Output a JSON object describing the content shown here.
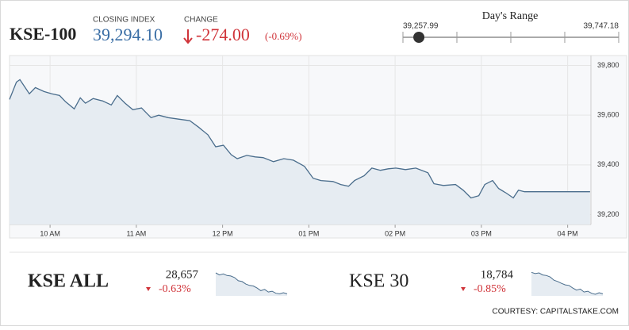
{
  "header": {
    "symbol": "KSE-100",
    "closing_label": "CLOSING INDEX",
    "closing_index": {
      "value": 39294.1,
      "label": "39,294.10"
    },
    "change_label": "CHANGE",
    "change": "-274.00",
    "change_percent": "(-0.69%)"
  },
  "days_range": {
    "title": "Day's Range",
    "low": {
      "value": 39257.99,
      "label": "39,257.99"
    },
    "high": {
      "value": 39747.18,
      "label": "39,747.18"
    }
  },
  "chart_data": [
    {
      "type": "line",
      "color": "#4a6d8c",
      "fill": "#e6ecf2",
      "grid": true,
      "x": [
        9.53,
        9.61,
        9.65,
        9.7,
        9.76,
        9.83,
        9.93,
        10.02,
        10.11,
        10.18,
        10.28,
        10.35,
        10.41,
        10.5,
        10.61,
        10.71,
        10.78,
        10.87,
        10.96,
        11.06,
        11.17,
        11.26,
        11.37,
        11.49,
        11.62,
        11.72,
        11.83,
        11.92,
        12.01,
        12.1,
        12.17,
        12.28,
        12.38,
        12.47,
        12.59,
        12.71,
        12.82,
        12.95,
        13.05,
        13.14,
        13.28,
        13.37,
        13.46,
        13.53,
        13.64,
        13.73,
        13.83,
        13.92,
        14.01,
        14.12,
        14.24,
        14.38,
        14.45,
        14.56,
        14.7,
        14.79,
        14.88,
        14.97,
        15.04,
        15.13,
        15.2,
        15.29,
        15.37,
        15.43,
        15.5,
        16.26
      ],
      "values": [
        39663,
        39733,
        39743,
        39717,
        39686,
        39711,
        39695,
        39686,
        39679,
        39654,
        39625,
        39670,
        39648,
        39667,
        39657,
        39641,
        39679,
        39648,
        39622,
        39629,
        39590,
        39600,
        39590,
        39584,
        39578,
        39552,
        39521,
        39473,
        39479,
        39441,
        39425,
        39438,
        39432,
        39429,
        39413,
        39425,
        39419,
        39394,
        39346,
        39337,
        39333,
        39321,
        39314,
        39337,
        39356,
        39387,
        39378,
        39384,
        39387,
        39381,
        39387,
        39368,
        39324,
        39317,
        39321,
        39298,
        39267,
        39276,
        39321,
        39337,
        39305,
        39286,
        39267,
        39298,
        39292,
        39292
      ],
      "xlim": [
        9.53,
        16.27
      ],
      "ylim": [
        39160,
        39840
      ],
      "xticks": [
        {
          "value": 10,
          "label": "10 AM"
        },
        {
          "value": 11,
          "label": "11 AM"
        },
        {
          "value": 12,
          "label": "12 PM"
        },
        {
          "value": 13,
          "label": "01 PM"
        },
        {
          "value": 14,
          "label": "02 PM"
        },
        {
          "value": 15,
          "label": "03 PM"
        },
        {
          "value": 16,
          "label": "04 PM"
        }
      ],
      "yticks": [
        {
          "value": 39200,
          "label": "39,200"
        },
        {
          "value": 39400,
          "label": "39,400"
        },
        {
          "value": 39600,
          "label": "39,600"
        },
        {
          "value": 39800,
          "label": "39,800"
        }
      ]
    },
    {
      "type": "line",
      "color": "#4a6d8c",
      "fill": "#e6ecf2",
      "values": [
        88,
        80,
        84,
        78,
        76,
        70,
        58,
        55,
        45,
        40,
        38,
        30,
        20,
        25,
        15,
        18,
        10,
        8,
        12,
        8
      ],
      "ylim": [
        0,
        100
      ]
    },
    {
      "type": "line",
      "color": "#4a6d8c",
      "fill": "#e6ecf2",
      "values": [
        90,
        85,
        88,
        80,
        78,
        72,
        60,
        55,
        48,
        42,
        40,
        30,
        22,
        26,
        15,
        18,
        10,
        6,
        12,
        8
      ],
      "ylim": [
        0,
        100
      ]
    }
  ],
  "indices": [
    {
      "name": "KSE ALL",
      "value": "28,657",
      "change": "-0.63%"
    },
    {
      "name": "KSE 30",
      "value": "18,784",
      "change": "-0.85%"
    }
  ],
  "courtesy": "COURTESY: CAPITALSTAKE.COM"
}
